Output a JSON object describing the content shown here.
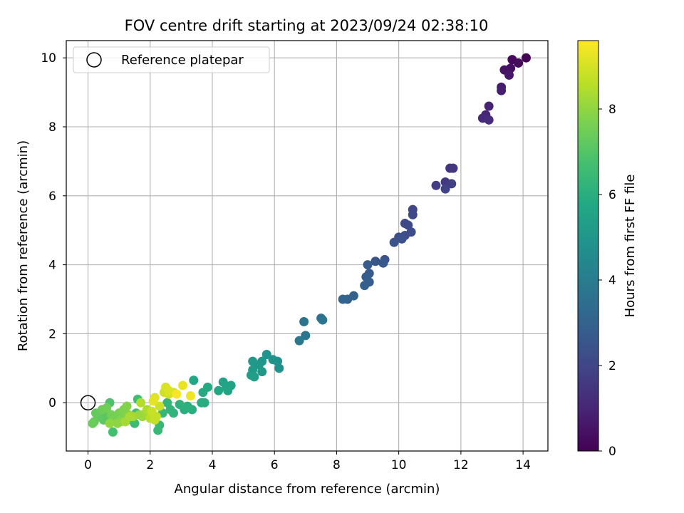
{
  "chart_data": {
    "type": "scatter",
    "title": "FOV centre drift starting at 2023/09/24 02:38:10",
    "xlabel": "Angular distance from reference (arcmin)",
    "ylabel": "Rotation from reference (arcmin)",
    "xlim": [
      -0.7,
      14.8
    ],
    "ylim": [
      -1.4,
      10.5
    ],
    "xticks": [
      0,
      2,
      4,
      6,
      8,
      10,
      12,
      14
    ],
    "yticks": [
      0,
      2,
      4,
      6,
      8,
      10
    ],
    "grid": true,
    "legend": {
      "position": "top-left",
      "entries": [
        "Reference platepar"
      ]
    },
    "colorbar": {
      "label": "Hours from first FF file",
      "range": [
        0,
        9.6
      ],
      "ticks": [
        0,
        2,
        4,
        6,
        8
      ],
      "colormap": "viridis"
    },
    "reference_point": {
      "x": 0,
      "y": 0
    },
    "series": [
      {
        "points": [
          [
            14.1,
            10.0,
            0.1
          ],
          [
            13.65,
            9.95,
            0.2
          ],
          [
            13.85,
            9.85,
            0.3
          ],
          [
            13.6,
            9.7,
            0.4
          ],
          [
            13.4,
            9.65,
            0.5
          ],
          [
            13.55,
            9.5,
            0.6
          ],
          [
            13.3,
            9.15,
            0.7
          ],
          [
            13.3,
            9.05,
            0.8
          ],
          [
            12.9,
            8.6,
            0.9
          ],
          [
            12.8,
            8.35,
            1.0
          ],
          [
            12.7,
            8.25,
            1.1
          ],
          [
            12.9,
            8.2,
            1.2
          ],
          [
            11.65,
            6.8,
            1.4
          ],
          [
            11.75,
            6.8,
            1.5
          ],
          [
            11.5,
            6.4,
            1.6
          ],
          [
            11.2,
            6.3,
            1.7
          ],
          [
            11.7,
            6.35,
            1.8
          ],
          [
            11.5,
            6.2,
            1.9
          ],
          [
            10.45,
            5.6,
            2.0
          ],
          [
            10.45,
            5.45,
            2.05
          ],
          [
            10.2,
            5.2,
            2.1
          ],
          [
            10.3,
            5.15,
            2.15
          ],
          [
            10.4,
            4.95,
            2.2
          ],
          [
            10.2,
            4.85,
            2.25
          ],
          [
            10.0,
            4.8,
            2.3
          ],
          [
            10.1,
            4.75,
            2.35
          ],
          [
            9.85,
            4.65,
            2.4
          ],
          [
            9.55,
            4.15,
            2.5
          ],
          [
            9.25,
            4.1,
            2.55
          ],
          [
            9.5,
            4.05,
            2.6
          ],
          [
            9.0,
            4.0,
            2.7
          ],
          [
            9.05,
            3.75,
            2.75
          ],
          [
            8.95,
            3.65,
            2.8
          ],
          [
            9.05,
            3.5,
            2.85
          ],
          [
            8.9,
            3.4,
            2.9
          ],
          [
            8.55,
            3.1,
            3.0
          ],
          [
            8.35,
            3.0,
            3.05
          ],
          [
            8.2,
            3.0,
            3.1
          ],
          [
            7.5,
            2.45,
            3.6
          ],
          [
            7.55,
            2.4,
            3.65
          ],
          [
            6.95,
            2.35,
            3.7
          ],
          [
            7.0,
            1.95,
            3.75
          ],
          [
            6.8,
            1.8,
            3.8
          ],
          [
            6.15,
            1.0,
            4.8
          ],
          [
            6.1,
            1.2,
            4.85
          ],
          [
            5.95,
            1.25,
            4.9
          ],
          [
            5.75,
            1.4,
            4.95
          ],
          [
            5.6,
            1.2,
            5.0
          ],
          [
            5.5,
            1.1,
            5.05
          ],
          [
            5.3,
            1.2,
            5.1
          ],
          [
            5.6,
            0.9,
            5.15
          ],
          [
            5.3,
            0.95,
            5.2
          ],
          [
            5.25,
            0.8,
            5.25
          ],
          [
            5.35,
            0.75,
            5.3
          ],
          [
            4.6,
            0.5,
            5.5
          ],
          [
            4.35,
            0.6,
            5.55
          ],
          [
            4.45,
            0.45,
            5.6
          ],
          [
            4.5,
            0.35,
            5.65
          ],
          [
            4.2,
            0.35,
            5.7
          ],
          [
            3.85,
            0.45,
            5.8
          ],
          [
            3.7,
            0.3,
            5.85
          ],
          [
            3.65,
            0.0,
            5.9
          ],
          [
            3.75,
            0.0,
            5.95
          ],
          [
            3.4,
            0.65,
            5.75
          ],
          [
            3.35,
            -0.2,
            6.0
          ],
          [
            3.1,
            -0.2,
            6.05
          ],
          [
            3.2,
            -0.1,
            6.1
          ],
          [
            2.95,
            -0.05,
            6.15
          ],
          [
            2.75,
            -0.3,
            6.2
          ],
          [
            2.65,
            -0.2,
            6.25
          ],
          [
            2.55,
            0.0,
            6.3
          ],
          [
            2.4,
            -0.3,
            6.35
          ],
          [
            2.3,
            -0.65,
            6.4
          ],
          [
            2.25,
            -0.8,
            6.45
          ],
          [
            1.5,
            -0.6,
            6.5
          ],
          [
            1.4,
            -0.5,
            6.55
          ],
          [
            1.6,
            0.1,
            6.6
          ],
          [
            1.55,
            -0.3,
            6.65
          ],
          [
            0.8,
            -0.85,
            6.7
          ],
          [
            0.7,
            0.0,
            6.9
          ],
          [
            0.55,
            -0.25,
            7.0
          ],
          [
            0.65,
            -0.4,
            7.1
          ],
          [
            0.5,
            -0.5,
            7.15
          ],
          [
            0.35,
            -0.4,
            7.2
          ],
          [
            0.25,
            -0.3,
            7.3
          ],
          [
            0.2,
            -0.55,
            7.35
          ],
          [
            0.15,
            -0.6,
            7.4
          ],
          [
            0.45,
            -0.2,
            7.45
          ],
          [
            0.6,
            -0.15,
            7.5
          ],
          [
            0.75,
            -0.35,
            7.55
          ],
          [
            0.85,
            -0.5,
            7.6
          ],
          [
            1.0,
            -0.3,
            7.65
          ],
          [
            1.1,
            -0.45,
            7.7
          ],
          [
            1.15,
            -0.2,
            7.75
          ],
          [
            1.25,
            -0.1,
            7.8
          ],
          [
            1.3,
            -0.35,
            7.85
          ],
          [
            1.05,
            -0.55,
            7.9
          ],
          [
            0.95,
            -0.6,
            7.95
          ],
          [
            0.7,
            -0.6,
            8.0
          ],
          [
            1.65,
            -0.35,
            8.1
          ],
          [
            1.75,
            -0.4,
            8.15
          ],
          [
            1.85,
            -0.3,
            8.2
          ],
          [
            1.45,
            -0.4,
            8.25
          ],
          [
            1.2,
            -0.55,
            8.3
          ],
          [
            1.35,
            -0.4,
            8.35
          ],
          [
            1.9,
            -0.2,
            8.4
          ],
          [
            1.7,
            0.0,
            8.5
          ],
          [
            2.0,
            -0.45,
            8.6
          ],
          [
            2.1,
            -0.35,
            8.65
          ],
          [
            2.15,
            -0.5,
            8.7
          ],
          [
            2.2,
            -0.4,
            8.75
          ],
          [
            2.05,
            -0.25,
            8.8
          ],
          [
            2.3,
            -0.1,
            8.85
          ],
          [
            2.45,
            0.3,
            8.9
          ],
          [
            2.6,
            0.25,
            8.95
          ],
          [
            2.75,
            0.3,
            9.0
          ],
          [
            2.5,
            0.45,
            9.05
          ],
          [
            2.6,
            0.35,
            9.1
          ],
          [
            2.15,
            0.15,
            9.15
          ],
          [
            2.1,
            0.05,
            9.2
          ],
          [
            3.05,
            0.5,
            9.3
          ],
          [
            3.3,
            0.2,
            9.4
          ],
          [
            2.85,
            0.25,
            9.5
          ]
        ]
      }
    ]
  }
}
